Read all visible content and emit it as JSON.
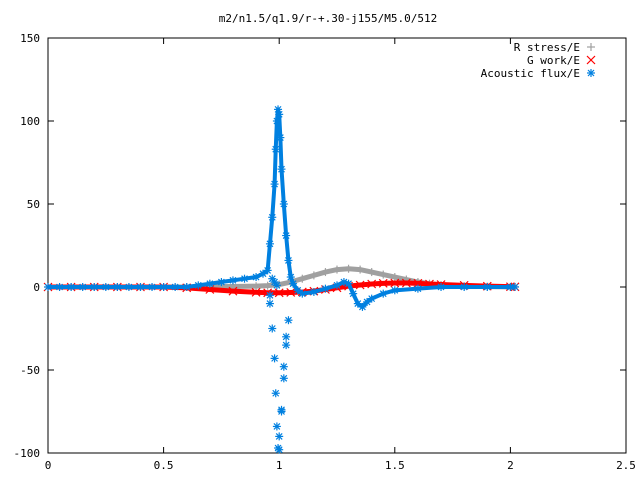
{
  "chart_data": {
    "type": "scatter",
    "title": "m2/n1.5/q1.9/r-+.30-j155/M5.0/512",
    "xlabel": "",
    "ylabel": "",
    "xlim": [
      0,
      2.5
    ],
    "ylim": [
      -100,
      150
    ],
    "x_ticks": [
      "0",
      "0.5",
      "1",
      "1.5",
      "2",
      "2.5"
    ],
    "y_ticks": [
      "-100",
      "-50",
      "0",
      "50",
      "100",
      "150"
    ],
    "grid": false,
    "legend_position": "top-right",
    "series": [
      {
        "name": "R stress/E",
        "marker": "plus",
        "color": "#a0a0a0",
        "x": [
          0.0,
          0.1,
          0.2,
          0.3,
          0.4,
          0.5,
          0.6,
          0.7,
          0.8,
          0.9,
          0.95,
          1.0,
          1.05,
          1.1,
          1.15,
          1.2,
          1.25,
          1.3,
          1.35,
          1.4,
          1.45,
          1.5,
          1.55,
          1.6,
          1.65,
          1.7,
          1.8,
          1.9,
          2.0,
          2.02
        ],
        "y": [
          0,
          0,
          0,
          0,
          0,
          0,
          0,
          0.2,
          0.3,
          0.5,
          0.8,
          1.5,
          3,
          5,
          7,
          9,
          10.5,
          11,
          10.5,
          9,
          7.5,
          6,
          4.5,
          3,
          2,
          1.2,
          0.5,
          0.2,
          0.1,
          0.1
        ]
      },
      {
        "name": "G work/E",
        "marker": "cross",
        "color": "#ff0000",
        "x": [
          0.0,
          0.1,
          0.2,
          0.3,
          0.4,
          0.5,
          0.6,
          0.7,
          0.8,
          0.9,
          0.95,
          1.0,
          1.05,
          1.1,
          1.15,
          1.2,
          1.25,
          1.3,
          1.35,
          1.4,
          1.45,
          1.5,
          1.55,
          1.6,
          1.65,
          1.7,
          1.8,
          1.9,
          2.0,
          2.02
        ],
        "y": [
          0,
          0,
          0,
          0,
          0,
          0,
          -0.5,
          -1.5,
          -2.5,
          -3.2,
          -3.5,
          -3.5,
          -3.3,
          -3,
          -2.5,
          -1.5,
          -0.5,
          0.5,
          1.2,
          1.8,
          2.2,
          2.4,
          2.4,
          2.2,
          1.8,
          1.5,
          1,
          0.5,
          0.2,
          0.1
        ]
      },
      {
        "name": "Acoustic flux/E",
        "marker": "star",
        "color": "#0080e0",
        "x": [
          0.0,
          0.05,
          0.1,
          0.15,
          0.2,
          0.25,
          0.3,
          0.35,
          0.4,
          0.45,
          0.5,
          0.55,
          0.6,
          0.65,
          0.7,
          0.75,
          0.8,
          0.85,
          0.9,
          0.93,
          0.95,
          0.96,
          0.97,
          0.98,
          0.985,
          0.99,
          0.995,
          1.0,
          1.005,
          1.01,
          1.02,
          1.03,
          1.04,
          1.05,
          1.06,
          1.08,
          1.1,
          1.15,
          1.2,
          1.25,
          1.28,
          1.3,
          1.32,
          1.34,
          1.36,
          1.38,
          1.4,
          1.45,
          1.5,
          1.6,
          1.7,
          1.8,
          1.9,
          2.0,
          2.02,
          0.96,
          0.97,
          0.98,
          0.985,
          0.99,
          0.995,
          1.0,
          1.01,
          1.02,
          1.03,
          1.04,
          0.96,
          0.97,
          0.98,
          0.99,
          1.0,
          1.01,
          1.02,
          1.03
        ],
        "y": [
          0,
          0,
          0,
          0,
          0,
          0,
          0,
          0,
          0,
          0,
          0,
          0,
          0,
          1,
          2,
          3,
          4,
          5,
          6,
          8,
          10,
          26,
          42,
          62,
          83,
          100,
          107,
          104,
          90,
          71,
          50,
          31,
          16,
          6,
          2,
          -2,
          -4,
          -3,
          -1,
          1,
          3,
          2,
          -4,
          -10,
          -12,
          -9,
          -7,
          -4,
          -2,
          -1,
          0,
          0,
          0,
          0,
          0,
          -10,
          -25,
          -43,
          -64,
          -84,
          -97,
          -90,
          -74,
          -55,
          -35,
          -20,
          -5,
          5,
          3,
          1,
          -98,
          -75,
          -48,
          -30
        ]
      }
    ]
  }
}
